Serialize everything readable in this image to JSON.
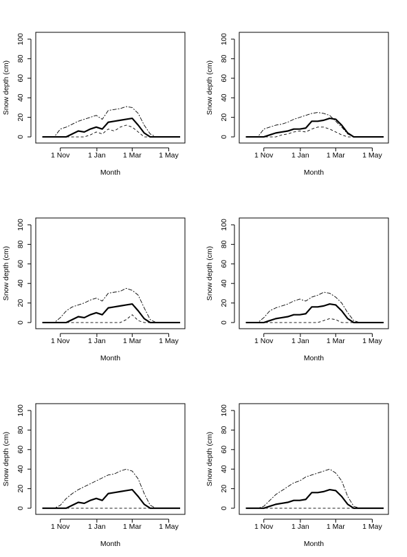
{
  "chart_data": [
    {
      "type": "line",
      "xlabel": "Month",
      "ylabel": "Snow depth (cm)",
      "x": [
        -30,
        -20,
        -10,
        0,
        10,
        20,
        30,
        40,
        50,
        60,
        70,
        80,
        90,
        100,
        110,
        120,
        130,
        140,
        150,
        160,
        170,
        180,
        190,
        200
      ],
      "xlim": [
        -41,
        208
      ],
      "xticks": [
        {
          "value": 0,
          "label": "1 Nov"
        },
        {
          "value": 61,
          "label": "1 Jan"
        },
        {
          "value": 120,
          "label": "1 Mar"
        },
        {
          "value": 181,
          "label": "1 May"
        }
      ],
      "ylim": [
        -6.3,
        107
      ],
      "yticks": [
        0,
        20,
        40,
        60,
        80,
        100
      ],
      "series": [
        {
          "color": "#000000",
          "linewidth": 2.2,
          "dash": "none",
          "values": [
            0,
            0,
            0,
            0,
            0,
            3,
            6,
            5,
            8,
            10,
            8,
            15,
            16,
            17,
            18,
            19,
            12,
            4,
            0,
            0,
            0,
            0,
            0,
            0
          ]
        },
        {
          "color": "#000000",
          "linewidth": 0.9,
          "dash": "6 2 2 2",
          "values": [
            0,
            0,
            0,
            8,
            10,
            13,
            16,
            18,
            20,
            22,
            18,
            27,
            28,
            29,
            31,
            30,
            24,
            12,
            3,
            0,
            0,
            0,
            0,
            0
          ]
        },
        {
          "color": "#000000",
          "linewidth": 0.9,
          "dash": "4 3",
          "values": [
            0,
            0,
            0,
            0,
            0,
            0,
            0,
            0,
            2,
            5,
            3,
            8,
            6,
            10,
            12,
            10,
            5,
            0,
            0,
            0,
            0,
            0,
            0,
            0
          ]
        }
      ]
    },
    {
      "type": "line",
      "xlabel": "Month",
      "ylabel": "Snow depth (cm)",
      "x": [
        -30,
        -20,
        -10,
        0,
        10,
        20,
        30,
        40,
        50,
        60,
        70,
        80,
        90,
        100,
        110,
        120,
        130,
        140,
        150,
        160,
        170,
        180,
        190,
        200
      ],
      "xlim": [
        -41,
        208
      ],
      "xticks": [
        {
          "value": 0,
          "label": "1 Nov"
        },
        {
          "value": 61,
          "label": "1 Jan"
        },
        {
          "value": 120,
          "label": "1 Mar"
        },
        {
          "value": 181,
          "label": "1 May"
        }
      ],
      "ylim": [
        -6.3,
        107
      ],
      "yticks": [
        0,
        20,
        40,
        60,
        80,
        100
      ],
      "series": [
        {
          "color": "#000000",
          "linewidth": 2.2,
          "dash": "none",
          "values": [
            0,
            0,
            0,
            0,
            2,
            4,
            5,
            6,
            8,
            8,
            9,
            16,
            16,
            17,
            19,
            18,
            12,
            4,
            0,
            0,
            0,
            0,
            0,
            0
          ]
        },
        {
          "color": "#000000",
          "linewidth": 0.9,
          "dash": "6 2 2 2",
          "values": [
            0,
            0,
            0,
            8,
            10,
            12,
            13,
            15,
            18,
            20,
            22,
            24,
            25,
            24,
            22,
            16,
            10,
            3,
            0,
            0,
            0,
            0,
            0,
            0
          ]
        },
        {
          "color": "#000000",
          "linewidth": 0.9,
          "dash": "4 3",
          "values": [
            0,
            0,
            0,
            0,
            0,
            0,
            2,
            3,
            5,
            6,
            5,
            8,
            10,
            10,
            8,
            5,
            2,
            0,
            0,
            0,
            0,
            0,
            0,
            0
          ]
        }
      ]
    },
    {
      "type": "line",
      "xlabel": "Month",
      "ylabel": "Snow depth (cm)",
      "x": [
        -30,
        -20,
        -10,
        0,
        10,
        20,
        30,
        40,
        50,
        60,
        70,
        80,
        90,
        100,
        110,
        120,
        130,
        140,
        150,
        160,
        170,
        180,
        190,
        200
      ],
      "xlim": [
        -41,
        208
      ],
      "xticks": [
        {
          "value": 0,
          "label": "1 Nov"
        },
        {
          "value": 61,
          "label": "1 Jan"
        },
        {
          "value": 120,
          "label": "1 Mar"
        },
        {
          "value": 181,
          "label": "1 May"
        }
      ],
      "ylim": [
        -6.3,
        107
      ],
      "yticks": [
        0,
        20,
        40,
        60,
        80,
        100
      ],
      "series": [
        {
          "color": "#000000",
          "linewidth": 2.2,
          "dash": "none",
          "values": [
            0,
            0,
            0,
            0,
            0,
            3,
            6,
            5,
            8,
            10,
            8,
            15,
            16,
            17,
            18,
            19,
            12,
            4,
            0,
            0,
            0,
            0,
            0,
            0
          ]
        },
        {
          "color": "#000000",
          "linewidth": 0.9,
          "dash": "6 2 2 2",
          "values": [
            0,
            0,
            0,
            5,
            12,
            16,
            18,
            20,
            23,
            25,
            22,
            30,
            31,
            32,
            35,
            33,
            28,
            15,
            3,
            0,
            0,
            0,
            0,
            0
          ]
        },
        {
          "color": "#000000",
          "linewidth": 0.9,
          "dash": "4 3",
          "values": [
            0,
            0,
            0,
            0,
            0,
            0,
            0,
            0,
            0,
            0,
            0,
            0,
            0,
            0,
            3,
            8,
            2,
            0,
            0,
            0,
            0,
            0,
            0,
            0
          ]
        }
      ]
    },
    {
      "type": "line",
      "xlabel": "Month",
      "ylabel": "Snow depth (cm)",
      "x": [
        -30,
        -20,
        -10,
        0,
        10,
        20,
        30,
        40,
        50,
        60,
        70,
        80,
        90,
        100,
        110,
        120,
        130,
        140,
        150,
        160,
        170,
        180,
        190,
        200
      ],
      "xlim": [
        -41,
        208
      ],
      "xticks": [
        {
          "value": 0,
          "label": "1 Nov"
        },
        {
          "value": 61,
          "label": "1 Jan"
        },
        {
          "value": 120,
          "label": "1 Mar"
        },
        {
          "value": 181,
          "label": "1 May"
        }
      ],
      "ylim": [
        -6.3,
        107
      ],
      "yticks": [
        0,
        20,
        40,
        60,
        80,
        100
      ],
      "series": [
        {
          "color": "#000000",
          "linewidth": 2.2,
          "dash": "none",
          "values": [
            0,
            0,
            0,
            0,
            2,
            4,
            5,
            6,
            8,
            8,
            9,
            16,
            16,
            17,
            19,
            18,
            12,
            4,
            0,
            0,
            0,
            0,
            0,
            0
          ]
        },
        {
          "color": "#000000",
          "linewidth": 0.9,
          "dash": "6 2 2 2",
          "values": [
            0,
            0,
            0,
            5,
            12,
            15,
            17,
            19,
            22,
            24,
            22,
            26,
            28,
            31,
            30,
            26,
            20,
            10,
            2,
            0,
            0,
            0,
            0,
            0
          ]
        },
        {
          "color": "#000000",
          "linewidth": 0.9,
          "dash": "4 3",
          "values": [
            0,
            0,
            0,
            0,
            0,
            0,
            0,
            0,
            0,
            0,
            0,
            0,
            0,
            2,
            4,
            3,
            0,
            0,
            0,
            0,
            0,
            0,
            0,
            0
          ]
        }
      ]
    },
    {
      "type": "line",
      "xlabel": "Month",
      "ylabel": "Snow depth (cm)",
      "x": [
        -30,
        -20,
        -10,
        0,
        10,
        20,
        30,
        40,
        50,
        60,
        70,
        80,
        90,
        100,
        110,
        120,
        130,
        140,
        150,
        160,
        170,
        180,
        190,
        200
      ],
      "xlim": [
        -41,
        208
      ],
      "xticks": [
        {
          "value": 0,
          "label": "1 Nov"
        },
        {
          "value": 61,
          "label": "1 Jan"
        },
        {
          "value": 120,
          "label": "1 Mar"
        },
        {
          "value": 181,
          "label": "1 May"
        }
      ],
      "ylim": [
        -6.3,
        107
      ],
      "yticks": [
        0,
        20,
        40,
        60,
        80,
        100
      ],
      "series": [
        {
          "color": "#000000",
          "linewidth": 2.2,
          "dash": "none",
          "values": [
            0,
            0,
            0,
            0,
            0,
            3,
            6,
            5,
            8,
            10,
            8,
            15,
            16,
            17,
            18,
            19,
            12,
            4,
            0,
            0,
            0,
            0,
            0,
            0
          ]
        },
        {
          "color": "#000000",
          "linewidth": 0.9,
          "dash": "6 2 2 2",
          "values": [
            0,
            0,
            0,
            3,
            10,
            15,
            19,
            22,
            25,
            28,
            31,
            34,
            35,
            38,
            40,
            38,
            30,
            15,
            3,
            0,
            0,
            0,
            0,
            0
          ]
        },
        {
          "color": "#000000",
          "linewidth": 0.9,
          "dash": "4 3",
          "values": [
            0,
            0,
            0,
            0,
            0,
            0,
            0,
            0,
            0,
            0,
            0,
            0,
            0,
            0,
            0,
            0,
            0,
            0,
            0,
            0,
            0,
            0,
            0,
            0
          ]
        }
      ]
    },
    {
      "type": "line",
      "xlabel": "Month",
      "ylabel": "Snow depth (cm)",
      "x": [
        -30,
        -20,
        -10,
        0,
        10,
        20,
        30,
        40,
        50,
        60,
        70,
        80,
        90,
        100,
        110,
        120,
        130,
        140,
        150,
        160,
        170,
        180,
        190,
        200
      ],
      "xlim": [
        -41,
        208
      ],
      "xticks": [
        {
          "value": 0,
          "label": "1 Nov"
        },
        {
          "value": 61,
          "label": "1 Jan"
        },
        {
          "value": 120,
          "label": "1 Mar"
        },
        {
          "value": 181,
          "label": "1 May"
        }
      ],
      "ylim": [
        -6.3,
        107
      ],
      "yticks": [
        0,
        20,
        40,
        60,
        80,
        100
      ],
      "series": [
        {
          "color": "#000000",
          "linewidth": 2.2,
          "dash": "none",
          "values": [
            0,
            0,
            0,
            0,
            2,
            4,
            5,
            6,
            8,
            8,
            9,
            16,
            16,
            17,
            19,
            18,
            12,
            4,
            0,
            0,
            0,
            0,
            0,
            0
          ]
        },
        {
          "color": "#000000",
          "linewidth": 0.9,
          "dash": "6 2 2 2",
          "values": [
            0,
            0,
            0,
            2,
            8,
            14,
            18,
            22,
            26,
            28,
            32,
            34,
            36,
            38,
            40,
            36,
            28,
            12,
            2,
            0,
            0,
            0,
            0,
            0
          ]
        },
        {
          "color": "#000000",
          "linewidth": 0.9,
          "dash": "4 3",
          "values": [
            0,
            0,
            0,
            0,
            0,
            0,
            0,
            0,
            0,
            0,
            0,
            0,
            0,
            0,
            0,
            0,
            0,
            0,
            0,
            0,
            0,
            0,
            0,
            0
          ]
        }
      ]
    }
  ]
}
